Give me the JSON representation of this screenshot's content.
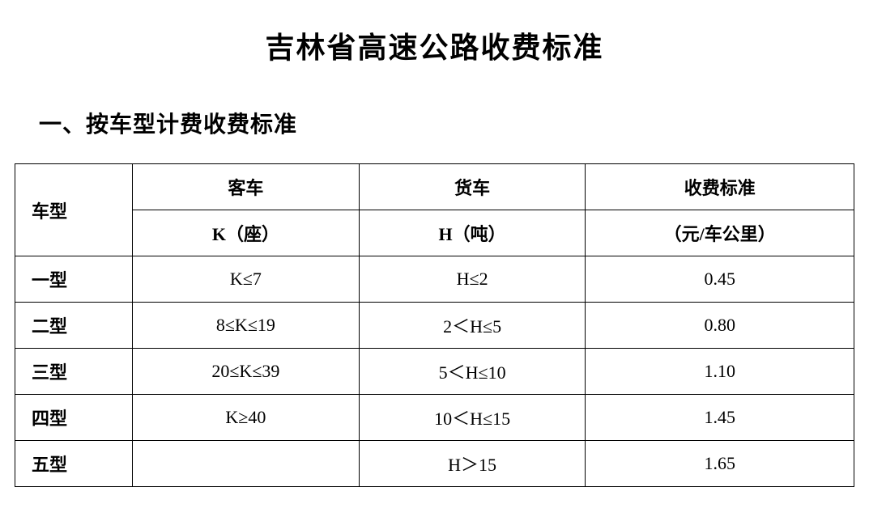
{
  "document": {
    "title": "吉林省高速公路收费标准",
    "section_heading": "一、按车型计费收费标准"
  },
  "table": {
    "type": "table",
    "background_color": "#ffffff",
    "border_color": "#000000",
    "font_family": "SimSun",
    "header": {
      "vehicle_type": "车型",
      "bus_header": "客车",
      "truck_header": "货车",
      "rate_header": "收费标准",
      "bus_unit": "K（座）",
      "truck_unit": "H（吨）",
      "rate_unit": "（元/车公里）"
    },
    "columns": [
      "车型",
      "客车 K（座）",
      "货车 H（吨）",
      "收费标准（元/车公里）"
    ],
    "column_widths_pct": [
      14,
      27,
      27,
      32
    ],
    "rows": [
      {
        "type": "一型",
        "bus": "K≤7",
        "truck": "H≤2",
        "rate": "0.45"
      },
      {
        "type": "二型",
        "bus": "8≤K≤19",
        "truck": "2＜H≤5",
        "rate": "0.80"
      },
      {
        "type": "三型",
        "bus": "20≤K≤39",
        "truck": "5＜H≤10",
        "rate": "1.10"
      },
      {
        "type": "四型",
        "bus": "K≥40",
        "truck": "10＜H≤15",
        "rate": "1.45"
      },
      {
        "type": "五型",
        "bus": "",
        "truck": "H＞15",
        "rate": "1.65"
      }
    ],
    "header_fontsize": 22,
    "cell_fontsize": 22,
    "title_fontsize": 36,
    "section_fontsize": 28
  }
}
